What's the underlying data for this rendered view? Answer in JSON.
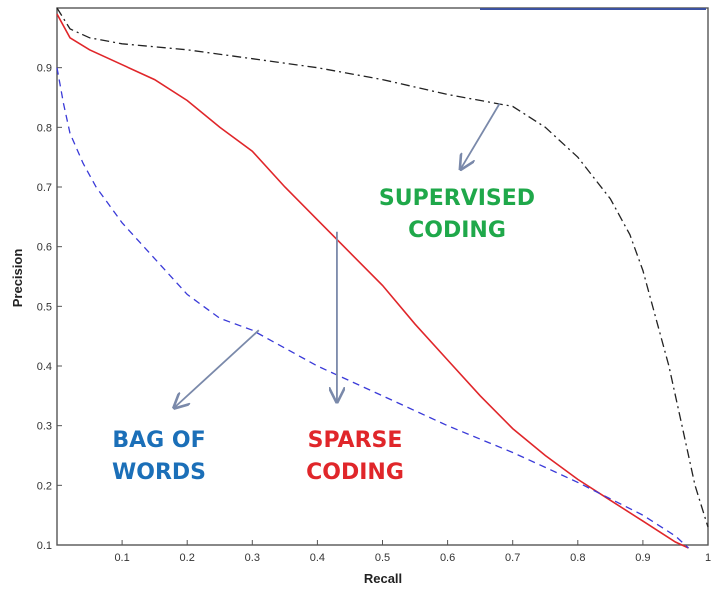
{
  "chart_data": {
    "type": "line",
    "title": "",
    "xlabel": "Recall",
    "ylabel": "Precision",
    "xlim": [
      0,
      1
    ],
    "ylim": [
      0.1,
      1
    ],
    "xticks": [
      "0.1",
      "0.2",
      "0.3",
      "0.4",
      "0.5",
      "0.6",
      "0.7",
      "0.8",
      "0.9",
      "1"
    ],
    "yticks": [
      "0.1",
      "0.2",
      "0.3",
      "0.4",
      "0.5",
      "0.6",
      "0.7",
      "0.8",
      "0.9"
    ],
    "grid": false,
    "legend": "none",
    "series": [
      {
        "key": "supervised",
        "color": "#222222",
        "dash": "dashdot",
        "x": [
          0.0,
          0.02,
          0.05,
          0.1,
          0.2,
          0.3,
          0.4,
          0.5,
          0.6,
          0.7,
          0.75,
          0.8,
          0.85,
          0.88,
          0.9,
          0.92,
          0.94,
          0.96,
          0.98,
          1.0
        ],
        "y": [
          1.0,
          0.965,
          0.95,
          0.94,
          0.93,
          0.915,
          0.9,
          0.88,
          0.855,
          0.835,
          0.8,
          0.75,
          0.68,
          0.62,
          0.56,
          0.48,
          0.4,
          0.3,
          0.2,
          0.13
        ]
      },
      {
        "key": "sparse",
        "color": "#e0262a",
        "dash": "solid",
        "x": [
          0.0,
          0.02,
          0.05,
          0.1,
          0.15,
          0.2,
          0.25,
          0.3,
          0.35,
          0.4,
          0.45,
          0.5,
          0.55,
          0.6,
          0.65,
          0.7,
          0.75,
          0.8,
          0.85,
          0.9,
          0.95,
          0.97
        ],
        "y": [
          0.99,
          0.95,
          0.93,
          0.905,
          0.88,
          0.845,
          0.8,
          0.76,
          0.7,
          0.645,
          0.59,
          0.535,
          0.47,
          0.41,
          0.35,
          0.295,
          0.25,
          0.21,
          0.175,
          0.14,
          0.105,
          0.095
        ]
      },
      {
        "key": "bow",
        "color": "#3a3ad8",
        "dash": "dashed",
        "x": [
          0.0,
          0.01,
          0.02,
          0.04,
          0.06,
          0.08,
          0.1,
          0.15,
          0.2,
          0.25,
          0.3,
          0.4,
          0.5,
          0.6,
          0.7,
          0.75,
          0.8,
          0.9,
          0.95,
          0.97
        ],
        "y": [
          0.9,
          0.84,
          0.79,
          0.74,
          0.7,
          0.67,
          0.64,
          0.58,
          0.52,
          0.48,
          0.46,
          0.4,
          0.35,
          0.3,
          0.255,
          0.23,
          0.205,
          0.15,
          0.115,
          0.095
        ]
      }
    ],
    "annotations": [
      {
        "key": "supervised",
        "lines": [
          "SUPERVISED",
          "CODING"
        ],
        "color": "#1fa84a",
        "target": [
          0.68,
          0.84
        ],
        "from": [
          0.62,
          0.73
        ]
      },
      {
        "key": "sparse",
        "lines": [
          "SPARSE",
          "CODING"
        ],
        "color": "#e0262a",
        "target": [
          0.43,
          0.625
        ],
        "from": [
          0.43,
          0.34
        ]
      },
      {
        "key": "bow",
        "lines": [
          "BAG OF",
          "WORDS"
        ],
        "color": "#1b6fb8",
        "target": [
          0.31,
          0.46
        ],
        "from": [
          0.18,
          0.33
        ]
      }
    ]
  }
}
